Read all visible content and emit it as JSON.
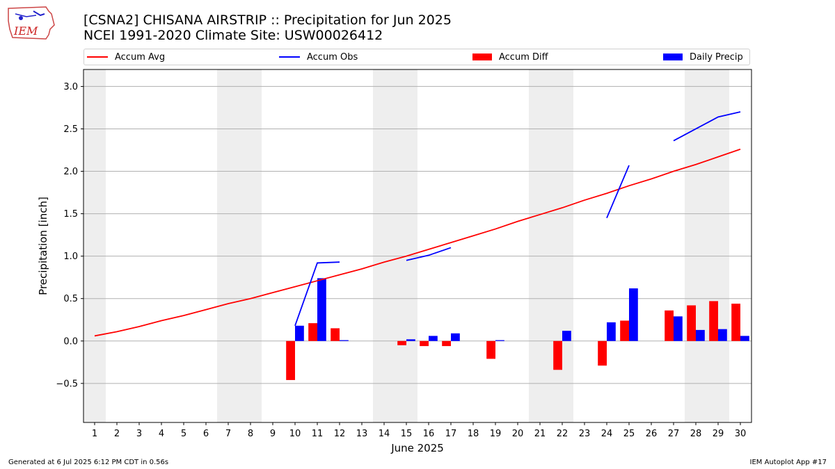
{
  "header": {
    "title_line1": "[CSNA2] CHISANA AIRSTRIP :: Precipitation for Jun 2025",
    "title_line2": "NCEI 1991-2020 Climate Site: USW00026412",
    "logo_text": "IEM"
  },
  "legend": {
    "accum_avg": "Accum Avg",
    "accum_obs": "Accum Obs",
    "accum_diff": "Accum Diff",
    "daily_precip": "Daily Precip"
  },
  "footer": {
    "left": "Generated at 6 Jul 2025 6:12 PM CDT in 0.56s",
    "right": "IEM Autoplot App #17"
  },
  "colors": {
    "avg": "#ff0000",
    "obs": "#0000ff",
    "diff": "#ff0000",
    "daily": "#0000ff",
    "weekend_band": "#eeeeee",
    "grid": "#b0b0b0"
  },
  "chart_data": {
    "type": "bar",
    "xlabel": "June 2025",
    "ylabel": "Precipitation [inch]",
    "x": [
      1,
      2,
      3,
      4,
      5,
      6,
      7,
      8,
      9,
      10,
      11,
      12,
      13,
      14,
      15,
      16,
      17,
      18,
      19,
      20,
      21,
      22,
      23,
      24,
      25,
      26,
      27,
      28,
      29,
      30
    ],
    "xlim": [
      0.5,
      30.5
    ],
    "ylim": [
      -0.96,
      3.2
    ],
    "yticks": [
      -0.5,
      0.0,
      0.5,
      1.0,
      1.5,
      2.0,
      2.5,
      3.0
    ],
    "ytick_labels": [
      "−0.5",
      "0.0",
      "0.5",
      "1.0",
      "1.5",
      "2.0",
      "2.5",
      "3.0"
    ],
    "grid": true,
    "weekend_days": [
      1,
      7,
      8,
      14,
      15,
      21,
      22,
      28,
      29
    ],
    "series": [
      {
        "name": "Accum Avg",
        "kind": "line",
        "values": [
          0.06,
          0.11,
          0.17,
          0.24,
          0.3,
          0.37,
          0.44,
          0.5,
          0.57,
          0.64,
          0.71,
          0.78,
          0.85,
          0.93,
          1.0,
          1.08,
          1.16,
          1.24,
          1.32,
          1.41,
          1.49,
          1.57,
          1.66,
          1.74,
          1.83,
          1.91,
          2.0,
          2.08,
          2.17,
          2.26
        ]
      },
      {
        "name": "Accum Obs",
        "kind": "line",
        "segments": [
          [
            [
              10,
              0.18
            ],
            [
              11,
              0.92
            ],
            [
              12,
              0.93
            ]
          ],
          [
            [
              15,
              0.95
            ],
            [
              16,
              1.01
            ],
            [
              17,
              1.1
            ]
          ],
          [
            [
              24,
              1.45
            ],
            [
              25,
              2.07
            ]
          ],
          [
            [
              27,
              2.36
            ],
            [
              28,
              2.5
            ],
            [
              29,
              2.64
            ],
            [
              30,
              2.7
            ]
          ]
        ]
      },
      {
        "name": "Accum Diff",
        "kind": "bar",
        "values": [
          null,
          null,
          null,
          null,
          null,
          null,
          null,
          null,
          null,
          -0.46,
          0.21,
          0.15,
          null,
          null,
          -0.05,
          -0.06,
          -0.06,
          null,
          -0.21,
          null,
          null,
          -0.34,
          null,
          -0.29,
          0.24,
          null,
          0.36,
          0.42,
          0.47,
          0.44
        ]
      },
      {
        "name": "Daily Precip",
        "kind": "bar",
        "values": [
          null,
          null,
          null,
          null,
          null,
          null,
          null,
          null,
          null,
          0.18,
          0.74,
          0.01,
          null,
          null,
          0.02,
          0.06,
          0.09,
          null,
          0.01,
          null,
          null,
          0.12,
          null,
          0.22,
          0.62,
          null,
          0.29,
          0.13,
          0.14,
          0.06
        ]
      }
    ]
  }
}
